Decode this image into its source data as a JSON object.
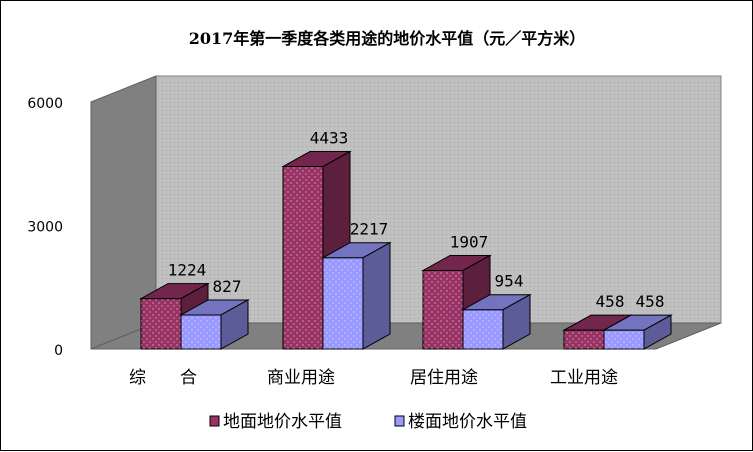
{
  "chart_data": {
    "type": "bar",
    "title": "2017年第一季度各类用途的地价水平值（元／平方米）",
    "categories": [
      "综　　合",
      "商业用途",
      "居住用途",
      "工业用途"
    ],
    "series": [
      {
        "name": "地面地价水平值",
        "values": [
          1224,
          4433,
          1907,
          458
        ],
        "color": "#993366"
      },
      {
        "name": "楼面地价水平值",
        "values": [
          827,
          2217,
          954,
          458
        ],
        "color": "#9999FF"
      }
    ],
    "yticks": [
      "0",
      "3000",
      "6000"
    ],
    "ylim": [
      0,
      6000
    ],
    "legend_position": "bottom",
    "three_d": true,
    "wall_color": "#C0C0C0"
  }
}
